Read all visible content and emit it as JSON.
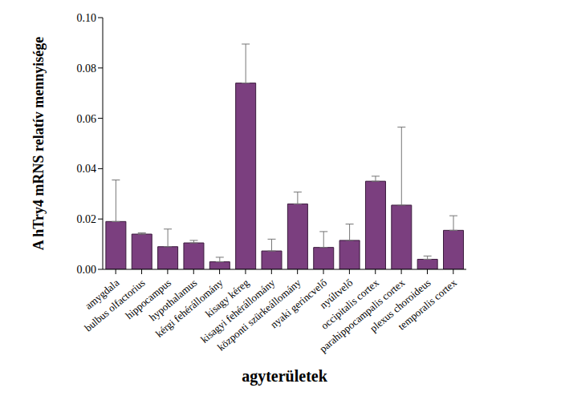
{
  "chart_data": {
    "type": "bar",
    "categories": [
      "amygdala",
      "bulbus olfactorius",
      "hippocampus",
      "hypothalamus",
      "kérgi fehérállomány",
      "kisagy kéreg",
      "kisagyi fehérállomány",
      "központi szürkeállomány",
      "nyaki gerincvelő",
      "nyúltvelő",
      "occipitalis cortex",
      "parahippocampalis cortex",
      "plexus choroideus",
      "temporalis cortex"
    ],
    "values": [
      0.019,
      0.014,
      0.009,
      0.0105,
      0.003,
      0.074,
      0.0073,
      0.026,
      0.0087,
      0.0115,
      0.035,
      0.0255,
      0.004,
      0.0155
    ],
    "errors": [
      0.0165,
      0.0005,
      0.007,
      0.001,
      0.0018,
      0.0155,
      0.0047,
      0.0047,
      0.0063,
      0.0065,
      0.002,
      0.031,
      0.0013,
      0.0058
    ],
    "color": "#7b3f7f",
    "xlabel": "agyterületek",
    "ylabel": "A hTry4 mRNS relatív mennyisége",
    "ylim": [
      0,
      0.1
    ],
    "yticks": [
      {
        "value": 0,
        "label": "0.00"
      },
      {
        "value": 0.02,
        "label": "0.02"
      },
      {
        "value": 0.04,
        "label": "0.04"
      },
      {
        "value": 0.06,
        "label": "0.06"
      },
      {
        "value": 0.08,
        "label": "0.08"
      },
      {
        "value": 0.1,
        "label": "0.10"
      }
    ],
    "grid": false
  }
}
